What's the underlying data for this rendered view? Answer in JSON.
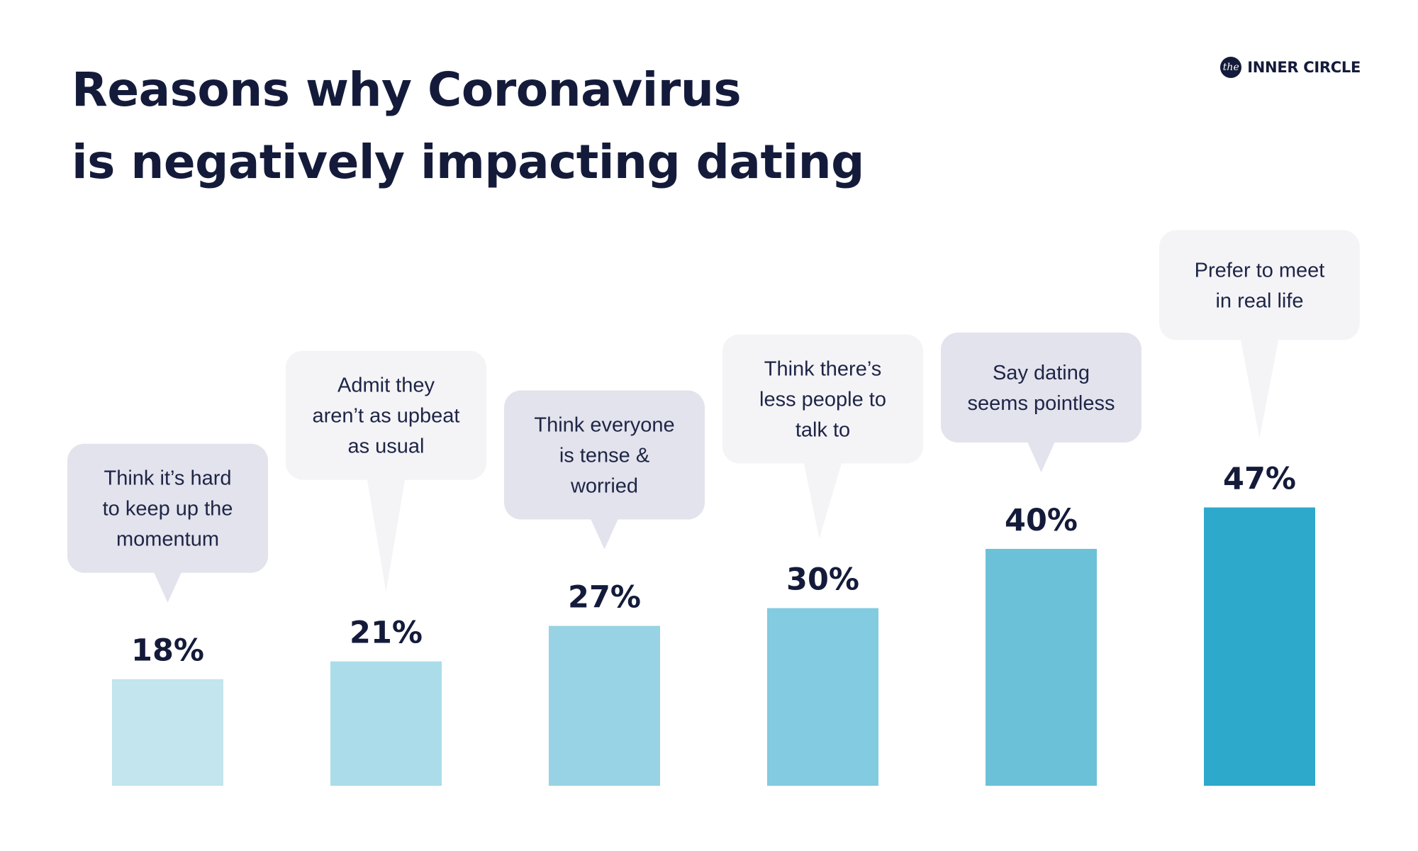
{
  "title_lines": [
    "Reasons why Coronavirus",
    "is negatively impacting dating"
  ],
  "logo": {
    "badge": "the",
    "text": "INNER CIRCLE"
  },
  "chart_data": {
    "type": "bar",
    "title": "Reasons why Coronavirus is negatively impacting dating",
    "categories": [
      "Think it’s hard to keep up the momentum",
      "Admit they aren’t as upbeat as usual",
      "Think everyone is tense & worried",
      "Think there’s less people to talk to",
      "Say dating seems pointless",
      "Prefer to meet in real life"
    ],
    "category_lines": [
      [
        "Think it’s hard",
        "to keep up the",
        "momentum"
      ],
      [
        "Admit they",
        "aren’t as upbeat",
        "as usual"
      ],
      [
        "Think everyone",
        "is tense &",
        "worried"
      ],
      [
        "Think there’s",
        "less people to",
        "talk to"
      ],
      [
        "Say dating",
        "seems pointless"
      ],
      [
        "Prefer to meet",
        "in real life"
      ]
    ],
    "values": [
      18,
      21,
      27,
      30,
      40,
      47
    ],
    "value_labels": [
      "18%",
      "21%",
      "27%",
      "30%",
      "40%",
      "47%"
    ],
    "unit": "%",
    "ylim": [
      0,
      50
    ],
    "grid": false,
    "legend": "none",
    "colors": {
      "bars": [
        "#c2e5ee",
        "#abdcea",
        "#97d3e4",
        "#82cbe0",
        "#6bc1d8",
        "#2ca9cb"
      ],
      "bubble_dark": "#e3e3ed",
      "bubble_light": "#f4f4f7"
    }
  }
}
